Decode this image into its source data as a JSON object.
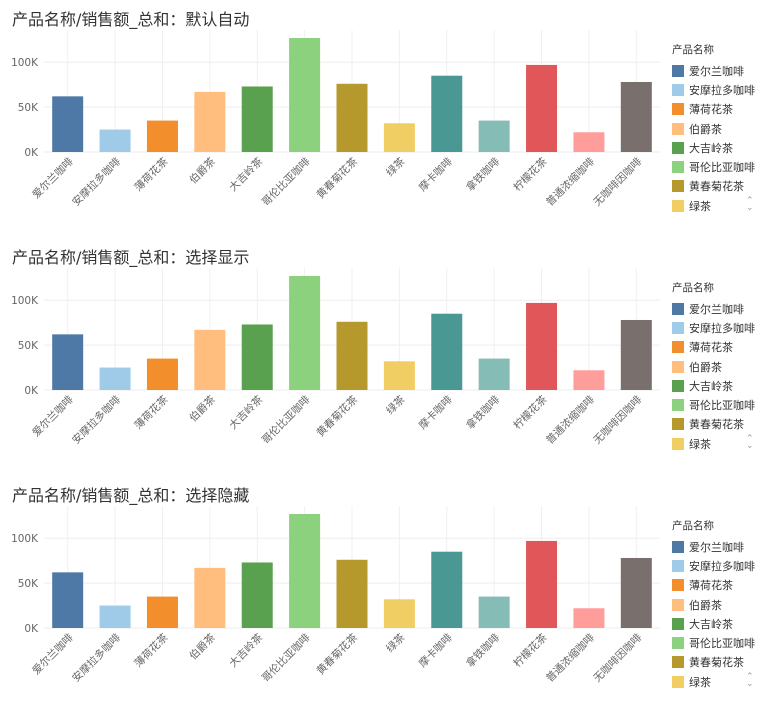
{
  "chart_data": [
    {
      "type": "bar",
      "title": "产品名称/销售额_总和：默认自动",
      "categories": [
        "爱尔兰咖啡",
        "安摩拉多咖啡",
        "薄荷花茶",
        "伯爵茶",
        "大吉岭茶",
        "哥伦比亚咖啡",
        "黄春菊花茶",
        "绿茶",
        "摩卡咖啡",
        "拿铁咖啡",
        "柠檬花茶",
        "普通浓缩咖啡",
        "无咖啡因咖啡"
      ],
      "values": [
        62000,
        25000,
        35000,
        67000,
        73000,
        127000,
        76000,
        32000,
        85000,
        35000,
        97000,
        22000,
        78000
      ],
      "colors": [
        "#4e79a7",
        "#a0cbe8",
        "#f28e2b",
        "#ffbe7d",
        "#59a14f",
        "#8cd17d",
        "#b6992d",
        "#f1ce63",
        "#499894",
        "#86bcb6",
        "#e15759",
        "#ff9d9a",
        "#79706e"
      ],
      "yticks": [
        0,
        50000,
        100000
      ],
      "ytick_labels": [
        "0K",
        "50K",
        "100K"
      ],
      "ylim": [
        0,
        127000
      ],
      "legend": {
        "title": "产品名称",
        "items": [
          "爱尔兰咖啡",
          "安摩拉多咖啡",
          "薄荷花茶",
          "伯爵茶",
          "大吉岭茶",
          "哥伦比亚咖啡",
          "黄春菊花茶",
          "绿茶"
        ]
      }
    },
    {
      "type": "bar",
      "title": "产品名称/销售额_总和：选择显示",
      "categories": [
        "爱尔兰咖啡",
        "安摩拉多咖啡",
        "薄荷花茶",
        "伯爵茶",
        "大吉岭茶",
        "哥伦比亚咖啡",
        "黄春菊花茶",
        "绿茶",
        "摩卡咖啡",
        "拿铁咖啡",
        "柠檬花茶",
        "普通浓缩咖啡",
        "无咖啡因咖啡"
      ],
      "values": [
        62000,
        25000,
        35000,
        67000,
        73000,
        127000,
        76000,
        32000,
        85000,
        35000,
        97000,
        22000,
        78000
      ],
      "colors": [
        "#4e79a7",
        "#a0cbe8",
        "#f28e2b",
        "#ffbe7d",
        "#59a14f",
        "#8cd17d",
        "#b6992d",
        "#f1ce63",
        "#499894",
        "#86bcb6",
        "#e15759",
        "#ff9d9a",
        "#79706e"
      ],
      "yticks": [
        0,
        50000,
        100000
      ],
      "ytick_labels": [
        "0K",
        "50K",
        "100K"
      ],
      "ylim": [
        0,
        127000
      ],
      "legend": {
        "title": "产品名称",
        "items": [
          "爱尔兰咖啡",
          "安摩拉多咖啡",
          "薄荷花茶",
          "伯爵茶",
          "大吉岭茶",
          "哥伦比亚咖啡",
          "黄春菊花茶",
          "绿茶"
        ]
      }
    },
    {
      "type": "bar",
      "title": "产品名称/销售额_总和：选择隐藏",
      "categories": [
        "爱尔兰咖啡",
        "安摩拉多咖啡",
        "薄荷花茶",
        "伯爵茶",
        "大吉岭茶",
        "哥伦比亚咖啡",
        "黄春菊花茶",
        "绿茶",
        "摩卡咖啡",
        "拿铁咖啡",
        "柠檬花茶",
        "普通浓缩咖啡",
        "无咖啡因咖啡"
      ],
      "values": [
        62000,
        25000,
        35000,
        67000,
        73000,
        127000,
        76000,
        32000,
        85000,
        35000,
        97000,
        22000,
        78000
      ],
      "colors": [
        "#4e79a7",
        "#a0cbe8",
        "#f28e2b",
        "#ffbe7d",
        "#59a14f",
        "#8cd17d",
        "#b6992d",
        "#f1ce63",
        "#499894",
        "#86bcb6",
        "#e15759",
        "#ff9d9a",
        "#79706e"
      ],
      "yticks": [
        0,
        50000,
        100000
      ],
      "ytick_labels": [
        "0K",
        "50K",
        "100K"
      ],
      "ylim": [
        0,
        127000
      ],
      "legend": {
        "title": "产品名称",
        "items": [
          "爱尔兰咖啡",
          "安摩拉多咖啡",
          "薄荷花茶",
          "伯爵茶",
          "大吉岭茶",
          "哥伦比亚咖啡",
          "黄春菊花茶",
          "绿茶"
        ]
      }
    }
  ]
}
